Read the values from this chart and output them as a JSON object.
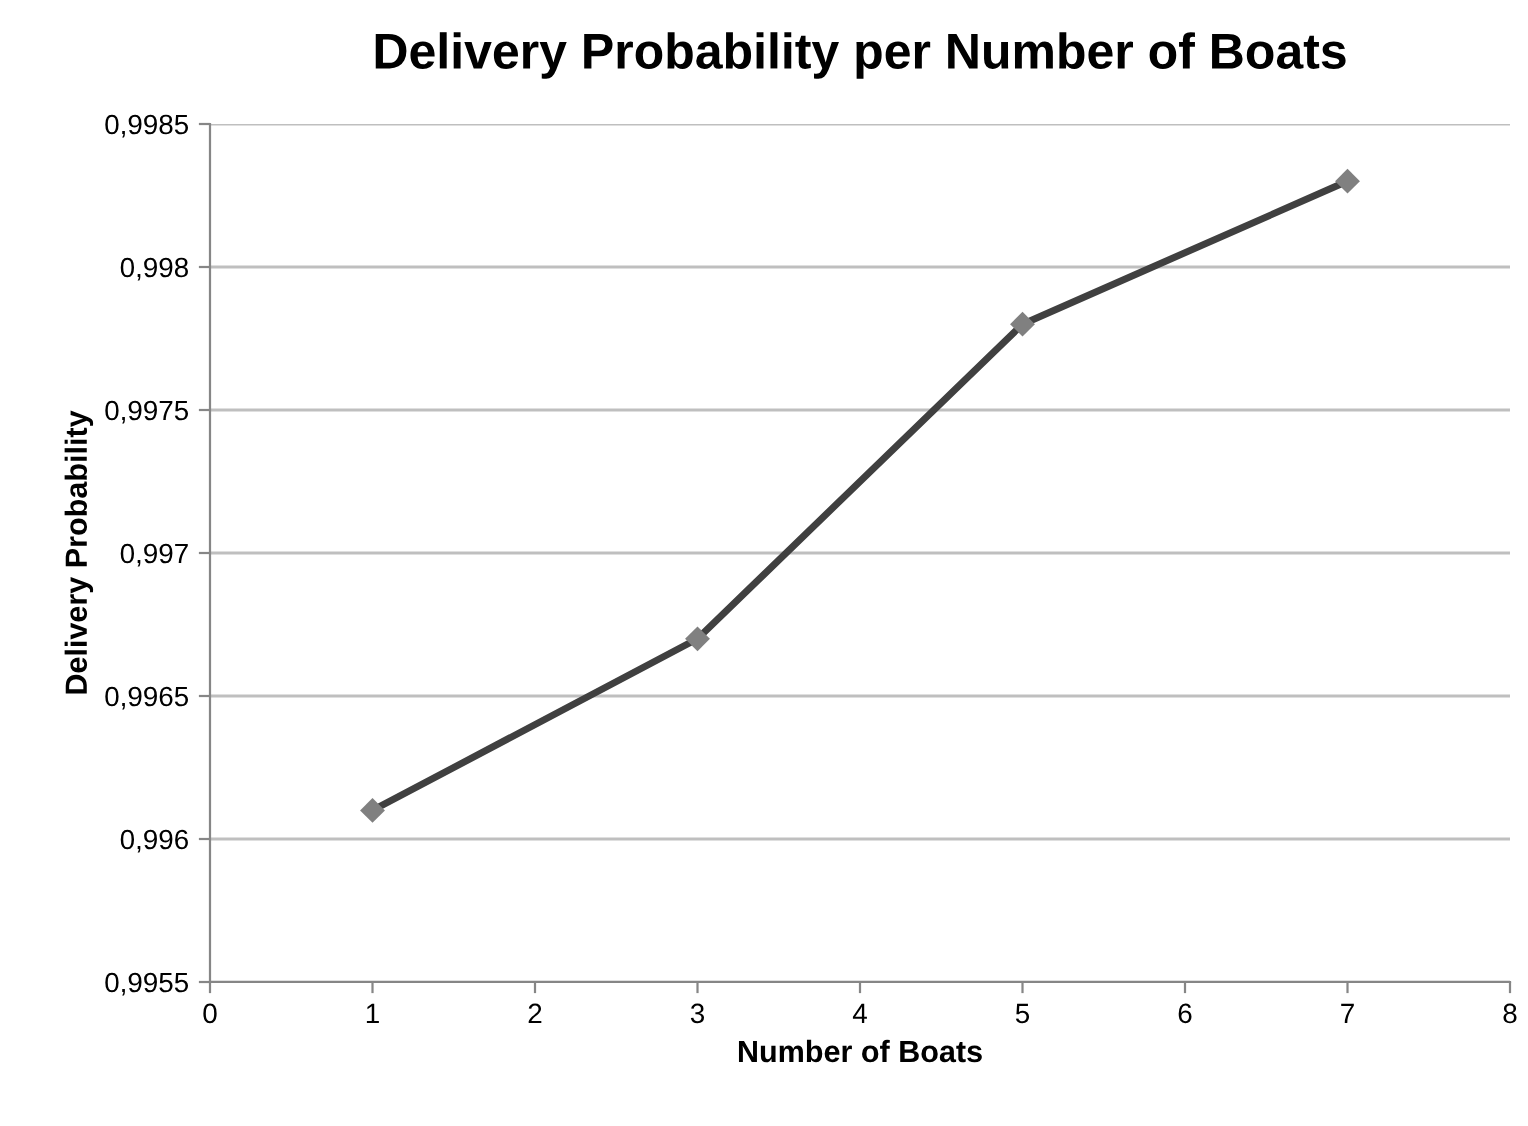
{
  "chart_data": {
    "type": "line",
    "title": "Delivery Probability per Number of Boats",
    "xlabel": "Number of Boats",
    "ylabel": "Delivery Probability",
    "x": [
      1,
      3,
      5,
      7
    ],
    "series": [
      {
        "color": "#404040",
        "colors": [
          "#808080",
          "#808080",
          "#808080",
          "#808080"
        ],
        "values": [
          0.9961,
          0.9967,
          0.9978,
          0.9983
        ]
      }
    ],
    "marker": "diamond",
    "line_style": "solid",
    "grid": "y",
    "legend": false,
    "xlim": [
      0,
      8
    ],
    "xticks": [
      0,
      1,
      2,
      3,
      4,
      5,
      6,
      7,
      8
    ],
    "ylim": [
      0.9955,
      0.9985
    ],
    "yticks": [
      {
        "value": 0.9955,
        "label": "0,9955"
      },
      {
        "value": 0.996,
        "label": "0,996"
      },
      {
        "value": 0.9965,
        "label": "0,9965"
      },
      {
        "value": 0.997,
        "label": "0,997"
      },
      {
        "value": 0.9975,
        "label": "0,9975"
      },
      {
        "value": 0.998,
        "label": "0,998"
      },
      {
        "value": 0.9985,
        "label": "0,9985"
      }
    ]
  }
}
